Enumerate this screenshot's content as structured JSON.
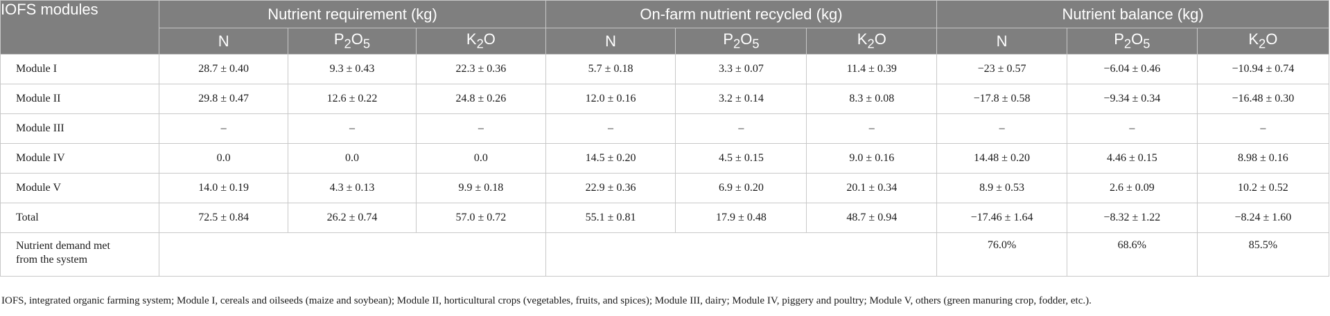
{
  "table": {
    "corner": "IOFS modules",
    "groups": [
      "Nutrient requirement (kg)",
      "On-farm nutrient recycled (kg)",
      "Nutrient balance (kg)"
    ],
    "sub_n": "N",
    "sub_p": "P2O5",
    "sub_k": "K2O",
    "rows": [
      {
        "label": "Module I",
        "cells": [
          "28.7 ± 0.40",
          "9.3 ± 0.43",
          "22.3 ± 0.36",
          "5.7 ± 0.18",
          "3.3 ± 0.07",
          "11.4 ± 0.39",
          "−23 ± 0.57",
          "−6.04 ± 0.46",
          "−10.94 ± 0.74"
        ]
      },
      {
        "label": "Module II",
        "cells": [
          "29.8 ± 0.47",
          "12.6 ± 0.22",
          "24.8 ± 0.26",
          "12.0 ± 0.16",
          "3.2 ± 0.14",
          "8.3 ± 0.08",
          "−17.8 ± 0.58",
          "−9.34 ± 0.34",
          "−16.48 ± 0.30"
        ]
      },
      {
        "label": "Module III",
        "cells": [
          "–",
          "–",
          "–",
          "–",
          "–",
          "–",
          "–",
          "–",
          "–"
        ]
      },
      {
        "label": "Module IV",
        "cells": [
          "0.0",
          "0.0",
          "0.0",
          "14.5 ± 0.20",
          "4.5 ± 0.15",
          "9.0 ± 0.16",
          "14.48 ± 0.20",
          "4.46 ± 0.15",
          "8.98 ± 0.16"
        ]
      },
      {
        "label": "Module V",
        "cells": [
          "14.0 ± 0.19",
          "4.3 ± 0.13",
          "9.9 ± 0.18",
          "22.9 ± 0.36",
          "6.9 ± 0.20",
          "20.1 ± 0.34",
          "8.9 ± 0.53",
          "2.6 ± 0.09",
          "10.2 ± 0.52"
        ]
      },
      {
        "label": "Total",
        "cells": [
          "72.5 ± 0.84",
          "26.2 ± 0.74",
          "57.0 ± 0.72",
          "55.1 ± 0.81",
          "17.9 ± 0.48",
          "48.7 ± 0.94",
          "−17.46 ± 1.64",
          "−8.32 ± 1.22",
          "−8.24 ± 1.60"
        ]
      }
    ],
    "demand_label_line1": "Nutrient demand met",
    "demand_label_line2": "from the system",
    "demand_values": [
      "76.0%",
      "68.6%",
      "85.5%"
    ]
  },
  "footnote": "IOFS, integrated organic farming system; Module I, cereals and oilseeds (maize and soybean); Module II, horticultural crops (vegetables, fruits, and spices); Module III, dairy; Module IV, piggery and poultry; Module V, others (green manuring crop, fodder, etc.)."
}
